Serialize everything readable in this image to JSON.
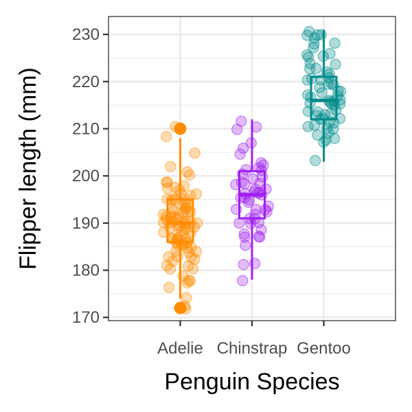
{
  "chart_data": {
    "type": "box",
    "xlabel": "Penguin Species",
    "ylabel": "Flipper length (mm)",
    "ylim": [
      169.3,
      233.8
    ],
    "yticks": [
      170,
      180,
      190,
      200,
      210,
      220,
      230
    ],
    "categories": [
      "Adelie",
      "Chinstrap",
      "Gentoo"
    ],
    "grid": true,
    "legend": "none",
    "point_alpha": 0.3,
    "series": [
      {
        "category": "Adelie",
        "color": "#FF8C00",
        "box": {
          "min": 174,
          "q1": 186,
          "median": 190,
          "q3": 195,
          "max": 208
        },
        "outliers": [
          172,
          210
        ],
        "points": [
          172,
          172,
          174,
          176,
          177,
          178,
          178,
          179,
          180,
          180,
          181,
          181,
          182,
          182,
          183,
          183,
          183,
          184,
          184,
          184,
          185,
          185,
          185,
          185,
          186,
          186,
          186,
          186,
          186,
          187,
          187,
          187,
          187,
          187,
          188,
          188,
          188,
          188,
          189,
          189,
          189,
          189,
          189,
          190,
          190,
          190,
          190,
          190,
          190,
          190,
          190,
          191,
          191,
          191,
          191,
          191,
          191,
          192,
          192,
          192,
          192,
          193,
          193,
          193,
          193,
          194,
          194,
          194,
          195,
          195,
          195,
          195,
          195,
          196,
          196,
          196,
          197,
          197,
          198,
          198,
          199,
          199,
          200,
          201,
          202,
          205,
          208,
          210
        ]
      },
      {
        "category": "Chinstrap",
        "color": "#A020F0",
        "box": {
          "min": 178,
          "q1": 191,
          "median": 196,
          "q3": 201,
          "max": 212
        },
        "outliers": [],
        "points": [
          178,
          181,
          181,
          185,
          187,
          187,
          187,
          188,
          189,
          190,
          190,
          190,
          191,
          191,
          192,
          192,
          193,
          193,
          193,
          194,
          194,
          195,
          195,
          195,
          196,
          196,
          196,
          196,
          197,
          197,
          197,
          198,
          198,
          198,
          199,
          199,
          200,
          200,
          201,
          201,
          202,
          202,
          203,
          205,
          206,
          207,
          210,
          210,
          212
        ]
      },
      {
        "category": "Gentoo",
        "color": "#008B8B",
        "box": {
          "min": 203,
          "q1": 212,
          "median": 216,
          "q3": 221,
          "max": 231
        },
        "outliers": [],
        "points": [
          203,
          207,
          208,
          208,
          209,
          209,
          210,
          210,
          210,
          211,
          211,
          211,
          212,
          212,
          212,
          213,
          213,
          213,
          214,
          214,
          214,
          215,
          215,
          215,
          215,
          216,
          216,
          216,
          216,
          217,
          217,
          217,
          218,
          218,
          218,
          219,
          219,
          219,
          220,
          220,
          220,
          221,
          221,
          222,
          222,
          223,
          223,
          224,
          224,
          225,
          225,
          226,
          226,
          227,
          228,
          228,
          229,
          230,
          230,
          230,
          231
        ]
      }
    ]
  }
}
